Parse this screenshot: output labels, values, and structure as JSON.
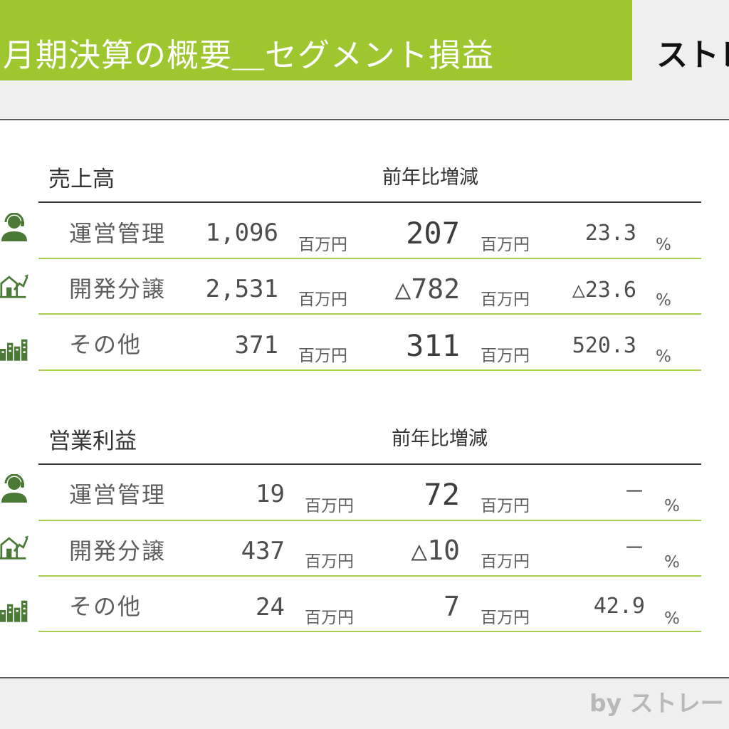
{
  "header": {
    "title": "月期決算の概要＿セグメント損益",
    "logo_text": "ストレ"
  },
  "colors": {
    "accent_green": "#9ec62f",
    "icon_green": "#4a7a36",
    "row_divider": "#a9cd4e"
  },
  "footer": {
    "text": "by ストレー"
  },
  "sales": {
    "title": "売上高",
    "change_header": "前年比増減",
    "rows": [
      {
        "icon": "staff-headset-icon",
        "label": "運営管理",
        "value": "1,096",
        "unit": "百万円",
        "change": "207",
        "change_unit": "百万円",
        "pct": "23.3",
        "pct_unit": "%"
      },
      {
        "icon": "house-chart-icon",
        "label": "開発分譲",
        "value": "2,531",
        "unit": "百万円",
        "change": "△782",
        "change_unit": "百万円",
        "pct": "△23.6",
        "pct_unit": "%"
      },
      {
        "icon": "buildings-icon",
        "label": "その他",
        "value": "371",
        "unit": "百万円",
        "change": "311",
        "change_unit": "百万円",
        "pct": "520.3",
        "pct_unit": "%"
      }
    ]
  },
  "profit": {
    "title": "営業利益",
    "change_header": "前年比増減",
    "rows": [
      {
        "icon": "staff-headset-icon",
        "label": "運営管理",
        "value": "19",
        "unit": "百万円",
        "change": "72",
        "change_unit": "百万円",
        "pct": "－",
        "pct_unit": "%"
      },
      {
        "icon": "house-chart-icon",
        "label": "開発分譲",
        "value": "437",
        "unit": "百万円",
        "change": "△10",
        "change_unit": "百万円",
        "pct": "－",
        "pct_unit": "%"
      },
      {
        "icon": "buildings-icon",
        "label": "その他",
        "value": "24",
        "unit": "百万円",
        "change": "7",
        "change_unit": "百万円",
        "pct": "42.9",
        "pct_unit": "%"
      }
    ]
  }
}
